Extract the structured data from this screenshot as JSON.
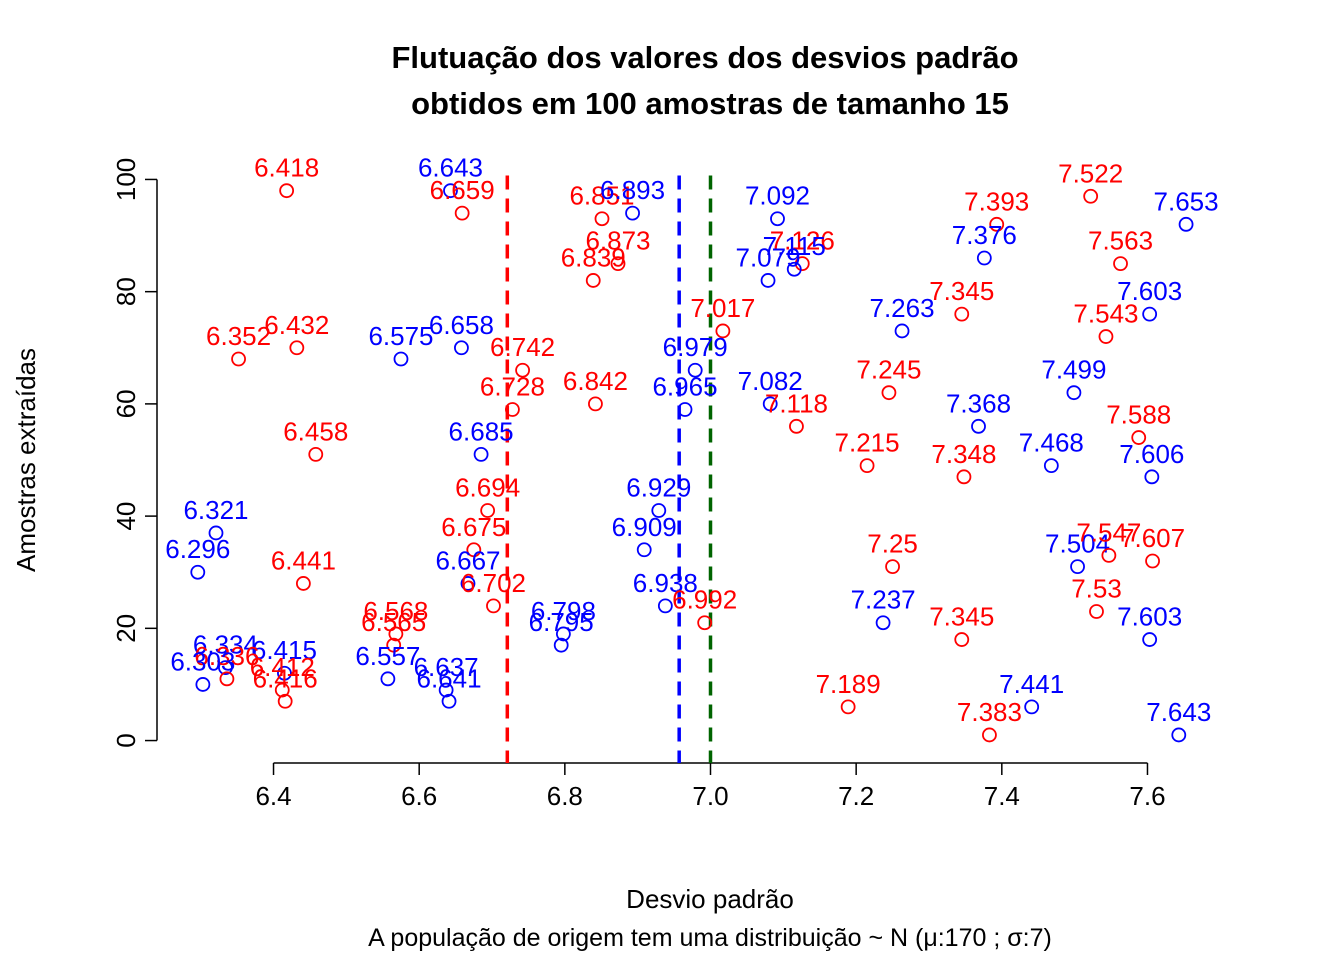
{
  "chart_data": {
    "type": "scatter",
    "title_lines": [
      "Flutuação dos valores dos desvios padrão",
      "obtidos em 100 amostras de tamanho 15"
    ],
    "xlabel": "Desvio padrão",
    "subtitle": "A população de origem tem uma distribuição ~ N  (μ:170 ; σ:7)",
    "ylabel": "Amostras extraídas",
    "xlim": [
      6.24,
      7.76
    ],
    "ylim": [
      -4,
      104
    ],
    "x_ticks": [
      "6.4",
      "6.6",
      "6.8",
      "7.0",
      "7.2",
      "7.4",
      "7.6"
    ],
    "y_ticks": [
      "0",
      "20",
      "40",
      "60",
      "80",
      "100"
    ],
    "grid": false,
    "colors": {
      "below": "#ff0000",
      "above": "#0000ff",
      "ref1": "#ff0000",
      "ref2": "#0000ff",
      "ref3": "#006400"
    },
    "reference_lines": [
      {
        "x": 6.721,
        "color": "#ff0000",
        "style": "dashed"
      },
      {
        "x": 6.957,
        "color": "#0000ff",
        "style": "dashed"
      },
      {
        "x": 7.0,
        "color": "#006400",
        "style": "dashed"
      }
    ],
    "points": [
      {
        "x": 6.418,
        "y": 98,
        "label": "6.418",
        "color": "red"
      },
      {
        "x": 6.643,
        "y": 98,
        "label": "6.643",
        "color": "blue"
      },
      {
        "x": 6.659,
        "y": 94,
        "label": "6.659",
        "color": "red"
      },
      {
        "x": 6.851,
        "y": 93,
        "label": "6.851",
        "color": "red"
      },
      {
        "x": 6.893,
        "y": 94,
        "label": "6.893",
        "color": "blue"
      },
      {
        "x": 7.092,
        "y": 93,
        "label": "7.092",
        "color": "blue"
      },
      {
        "x": 7.393,
        "y": 92,
        "label": "7.393",
        "color": "red"
      },
      {
        "x": 7.522,
        "y": 97,
        "label": "7.522",
        "color": "red"
      },
      {
        "x": 7.653,
        "y": 92,
        "label": "7.653",
        "color": "blue"
      },
      {
        "x": 7.126,
        "y": 85,
        "label": "7.126",
        "color": "red"
      },
      {
        "x": 7.115,
        "y": 84,
        "label": "7.115",
        "color": "blue"
      },
      {
        "x": 7.079,
        "y": 82,
        "label": "7.079",
        "color": "blue"
      },
      {
        "x": 6.873,
        "y": 85,
        "label": "6.873",
        "color": "red"
      },
      {
        "x": 6.839,
        "y": 82,
        "label": "6.839",
        "color": "red"
      },
      {
        "x": 7.376,
        "y": 86,
        "label": "7.376",
        "color": "blue"
      },
      {
        "x": 7.563,
        "y": 85,
        "label": "7.563",
        "color": "red"
      },
      {
        "x": 7.345,
        "y": 76,
        "label": "7.345",
        "color": "red"
      },
      {
        "x": 7.603,
        "y": 76,
        "label": "7.603",
        "color": "blue"
      },
      {
        "x": 7.543,
        "y": 72,
        "label": "7.543",
        "color": "red"
      },
      {
        "x": 7.263,
        "y": 73,
        "label": "7.263",
        "color": "blue"
      },
      {
        "x": 7.017,
        "y": 73,
        "label": "7.017",
        "color": "red"
      },
      {
        "x": 6.432,
        "y": 70,
        "label": "6.432",
        "color": "red"
      },
      {
        "x": 6.352,
        "y": 68,
        "label": "6.352",
        "color": "red"
      },
      {
        "x": 6.575,
        "y": 68,
        "label": "6.575",
        "color": "blue"
      },
      {
        "x": 6.658,
        "y": 70,
        "label": "6.658",
        "color": "blue"
      },
      {
        "x": 6.742,
        "y": 66,
        "label": "6.742",
        "color": "red"
      },
      {
        "x": 6.979,
        "y": 66,
        "label": "6.979",
        "color": "blue"
      },
      {
        "x": 6.728,
        "y": 59,
        "label": "6.728",
        "color": "red"
      },
      {
        "x": 6.842,
        "y": 60,
        "label": "6.842",
        "color": "red"
      },
      {
        "x": 6.965,
        "y": 59,
        "label": "6.965",
        "color": "blue"
      },
      {
        "x": 7.082,
        "y": 60,
        "label": "7.082",
        "color": "blue"
      },
      {
        "x": 7.118,
        "y": 56,
        "label": "7.118",
        "color": "red"
      },
      {
        "x": 7.245,
        "y": 62,
        "label": "7.245",
        "color": "red"
      },
      {
        "x": 7.499,
        "y": 62,
        "label": "7.499",
        "color": "blue"
      },
      {
        "x": 7.368,
        "y": 56,
        "label": "7.368",
        "color": "blue"
      },
      {
        "x": 7.588,
        "y": 54,
        "label": "7.588",
        "color": "red"
      },
      {
        "x": 6.458,
        "y": 51,
        "label": "6.458",
        "color": "red"
      },
      {
        "x": 6.685,
        "y": 51,
        "label": "6.685",
        "color": "blue"
      },
      {
        "x": 7.215,
        "y": 49,
        "label": "7.215",
        "color": "red"
      },
      {
        "x": 7.348,
        "y": 47,
        "label": "7.348",
        "color": "red"
      },
      {
        "x": 7.468,
        "y": 49,
        "label": "7.468",
        "color": "blue"
      },
      {
        "x": 7.606,
        "y": 47,
        "label": "7.606",
        "color": "blue"
      },
      {
        "x": 6.694,
        "y": 41,
        "label": "6.694",
        "color": "red"
      },
      {
        "x": 6.929,
        "y": 41,
        "label": "6.929",
        "color": "blue"
      },
      {
        "x": 6.321,
        "y": 37,
        "label": "6.321",
        "color": "blue"
      },
      {
        "x": 6.675,
        "y": 34,
        "label": "6.675",
        "color": "red"
      },
      {
        "x": 6.909,
        "y": 34,
        "label": "6.909",
        "color": "blue"
      },
      {
        "x": 6.296,
        "y": 30,
        "label": "6.296",
        "color": "blue"
      },
      {
        "x": 6.441,
        "y": 28,
        "label": "6.441",
        "color": "red"
      },
      {
        "x": 6.667,
        "y": 28,
        "label": "6.667",
        "color": "blue"
      },
      {
        "x": 6.702,
        "y": 24,
        "label": "6.702",
        "color": "red"
      },
      {
        "x": 6.938,
        "y": 24,
        "label": "6.938",
        "color": "blue"
      },
      {
        "x": 6.992,
        "y": 21,
        "label": "6.992",
        "color": "red"
      },
      {
        "x": 7.25,
        "y": 31,
        "label": "7.25",
        "color": "red"
      },
      {
        "x": 7.504,
        "y": 31,
        "label": "7.504",
        "color": "blue"
      },
      {
        "x": 7.547,
        "y": 33,
        "label": "7.547",
        "color": "red"
      },
      {
        "x": 7.607,
        "y": 32,
        "label": "7.607",
        "color": "red"
      },
      {
        "x": 7.237,
        "y": 21,
        "label": "7.237",
        "color": "blue"
      },
      {
        "x": 7.345,
        "y": 18,
        "label": "7.345",
        "color": "red"
      },
      {
        "x": 7.53,
        "y": 23,
        "label": "7.53",
        "color": "red"
      },
      {
        "x": 7.603,
        "y": 18,
        "label": "7.603",
        "color": "blue"
      },
      {
        "x": 6.798,
        "y": 19,
        "label": "6.798",
        "color": "blue"
      },
      {
        "x": 6.795,
        "y": 17,
        "label": "6.795",
        "color": "blue"
      },
      {
        "x": 6.568,
        "y": 19,
        "label": "6.568",
        "color": "red"
      },
      {
        "x": 6.565,
        "y": 17,
        "label": "6.565",
        "color": "red"
      },
      {
        "x": 6.557,
        "y": 11,
        "label": "6.557",
        "color": "blue"
      },
      {
        "x": 6.637,
        "y": 9,
        "label": "6.637",
        "color": "blue"
      },
      {
        "x": 6.641,
        "y": 7,
        "label": "6.641",
        "color": "blue"
      },
      {
        "x": 6.415,
        "y": 12,
        "label": "6.415",
        "color": "blue"
      },
      {
        "x": 6.412,
        "y": 9,
        "label": "6.412",
        "color": "red"
      },
      {
        "x": 6.416,
        "y": 7,
        "label": "6.416",
        "color": "red"
      },
      {
        "x": 6.334,
        "y": 13,
        "label": "6.334",
        "color": "blue"
      },
      {
        "x": 6.336,
        "y": 11,
        "label": "6.336",
        "color": "red"
      },
      {
        "x": 6.303,
        "y": 10,
        "label": "6.303",
        "color": "blue"
      },
      {
        "x": 7.189,
        "y": 6,
        "label": "7.189",
        "color": "red"
      },
      {
        "x": 7.383,
        "y": 1,
        "label": "7.383",
        "color": "red"
      },
      {
        "x": 7.441,
        "y": 6,
        "label": "7.441",
        "color": "blue"
      },
      {
        "x": 7.643,
        "y": 1,
        "label": "7.643",
        "color": "blue"
      }
    ]
  }
}
